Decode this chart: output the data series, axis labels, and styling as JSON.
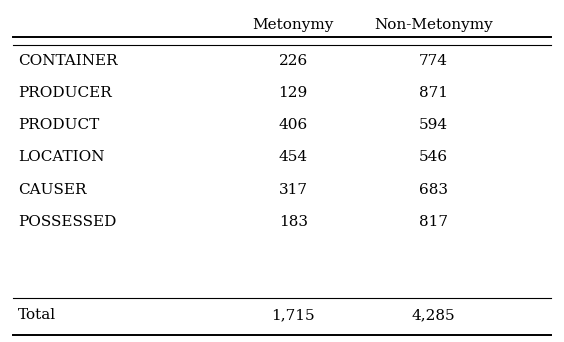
{
  "headers": [
    "",
    "Metonymy",
    "Non-Metonymy"
  ],
  "rows": [
    [
      "CONTAINER",
      "226",
      "774"
    ],
    [
      "PRODUCER",
      "129",
      "871"
    ],
    [
      "PRODUCT",
      "406",
      "594"
    ],
    [
      "LOCATION",
      "454",
      "546"
    ],
    [
      "CAUSER",
      "317",
      "683"
    ],
    [
      "POSSESSED",
      "183",
      "817"
    ]
  ],
  "total_row": [
    "Total",
    "1,715",
    "4,285"
  ],
  "bg_color": "#ffffff",
  "text_color": "#000000",
  "font_size": 11,
  "header_font_size": 11
}
